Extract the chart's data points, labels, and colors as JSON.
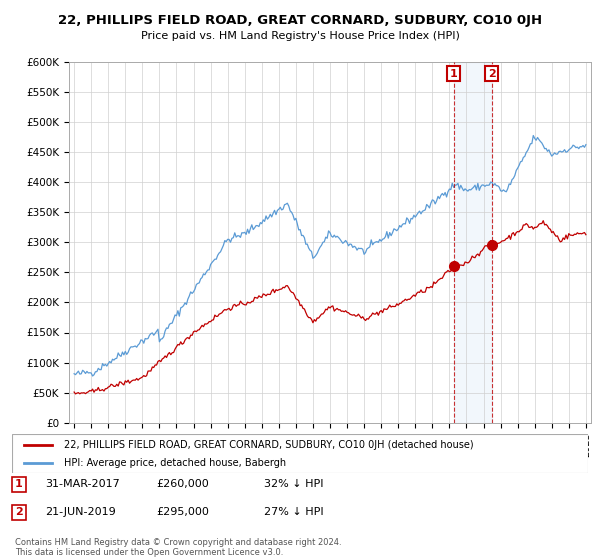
{
  "title": "22, PHILLIPS FIELD ROAD, GREAT CORNARD, SUDBURY, CO10 0JH",
  "subtitle": "Price paid vs. HM Land Registry's House Price Index (HPI)",
  "ylabel_ticks": [
    "£0",
    "£50K",
    "£100K",
    "£150K",
    "£200K",
    "£250K",
    "£300K",
    "£350K",
    "£400K",
    "£450K",
    "£500K",
    "£550K",
    "£600K"
  ],
  "ylim": [
    0,
    600000
  ],
  "ytick_vals": [
    0,
    50000,
    100000,
    150000,
    200000,
    250000,
    300000,
    350000,
    400000,
    450000,
    500000,
    550000,
    600000
  ],
  "hpi_color": "#5b9bd5",
  "price_color": "#c00000",
  "sale1_date": 2017.25,
  "sale1_price": 260000,
  "sale2_date": 2019.47,
  "sale2_price": 295000,
  "sale1_label": "1",
  "sale2_label": "2",
  "legend_line1": "22, PHILLIPS FIELD ROAD, GREAT CORNARD, SUDBURY, CO10 0JH (detached house)",
  "legend_line2": "HPI: Average price, detached house, Babergh",
  "footnote": "Contains HM Land Registry data © Crown copyright and database right 2024.\nThis data is licensed under the Open Government Licence v3.0.",
  "background_color": "#ffffff",
  "grid_color": "#d0d0d0",
  "span_color": "#cce0f5"
}
